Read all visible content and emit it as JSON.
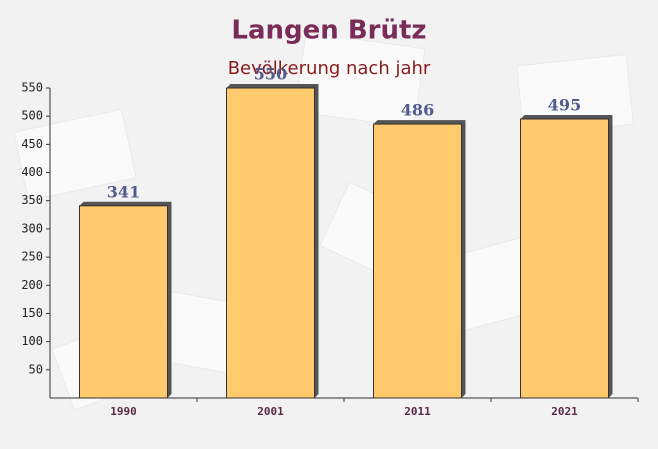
{
  "chart_data": {
    "type": "bar",
    "title": "Langen Brütz",
    "subtitle": "Bevölkerung nach jahr",
    "categories": [
      "1990",
      "2001",
      "2011",
      "2021"
    ],
    "values": [
      341,
      550,
      486,
      495
    ],
    "color": "#ffc55c",
    "ylim": [
      0,
      550
    ],
    "yticks": [
      50,
      100,
      150,
      200,
      250,
      300,
      350,
      400,
      450,
      500,
      550
    ],
    "grid": false
  }
}
